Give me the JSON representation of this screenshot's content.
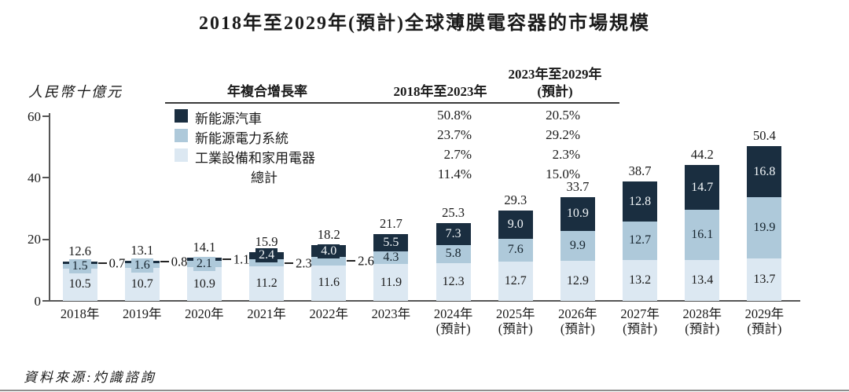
{
  "source_note": "資料來源:灼識諮詢",
  "cagr_table": {
    "col_header_metric": "年複合增長率",
    "col_header_period1": "2018年至2023年",
    "col_header_period2_line1": "2023年至2029年",
    "col_header_period2_line2": "(預計)",
    "rows": [
      {
        "label": "新能源汽車",
        "swatch": "#1a2e40",
        "period1": "50.8%",
        "period2": "20.5%"
      },
      {
        "label": "新能源電力系統",
        "swatch": "#aec9da",
        "period1": "23.7%",
        "period2": "29.2%"
      },
      {
        "label": "工業設備和家用電器",
        "swatch": "#dce8f2",
        "period1": "2.7%",
        "period2": "2.3%"
      },
      {
        "label": "總計",
        "swatch": null,
        "period1": "11.4%",
        "period2": "15.0%"
      }
    ]
  },
  "chart_data": {
    "type": "bar",
    "stacked": true,
    "title": "2018年至2029年(預計)全球薄膜電容器的市場規模",
    "ylabel": "人民幣十億元",
    "xlabel": "",
    "ylim": [
      0,
      60
    ],
    "yticks": [
      0,
      20,
      40,
      60
    ],
    "grid": false,
    "legend_position": "top-left-table",
    "categories": [
      "2018年",
      "2019年",
      "2020年",
      "2021年",
      "2022年",
      "2023年",
      "2024年",
      "2025年",
      "2026年",
      "2027年",
      "2028年",
      "2029年"
    ],
    "category_sublabels": [
      "",
      "",
      "",
      "",
      "",
      "",
      "(預計)",
      "(預計)",
      "(預計)",
      "(預計)",
      "(預計)",
      "(預計)"
    ],
    "totals": [
      12.6,
      13.1,
      14.1,
      15.9,
      18.2,
      21.7,
      25.3,
      29.3,
      33.7,
      38.7,
      44.2,
      50.4
    ],
    "series": [
      {
        "name": "工業設備和家用電器",
        "color": "#dce8f2",
        "label_color": "#1a1a1a",
        "values": [
          10.5,
          10.7,
          10.9,
          11.2,
          11.6,
          11.9,
          12.3,
          12.7,
          12.9,
          13.2,
          13.4,
          13.7
        ],
        "label_pos": [
          "in",
          "in",
          "in",
          "in",
          "in",
          "in",
          "in",
          "in",
          "in",
          "in",
          "in",
          "in"
        ]
      },
      {
        "name": "新能源電力系統",
        "color": "#aec9da",
        "label_color": "#16242e",
        "values": [
          1.5,
          1.6,
          2.1,
          2.3,
          2.6,
          4.3,
          5.8,
          7.6,
          9.9,
          12.7,
          16.1,
          19.9
        ],
        "label_pos": [
          "box",
          "box",
          "box",
          "out",
          "out",
          "in",
          "in",
          "in",
          "in",
          "in",
          "in",
          "in"
        ]
      },
      {
        "name": "新能源汽車",
        "color": "#1a2e40",
        "label_color": "#f2f6f8",
        "values": [
          0.7,
          0.8,
          1.1,
          2.4,
          4.0,
          5.5,
          7.3,
          9.0,
          10.9,
          12.8,
          14.7,
          16.8
        ],
        "label_pos": [
          "out",
          "out",
          "out",
          "box",
          "box",
          "in",
          "in",
          "in",
          "in",
          "in",
          "in",
          "in"
        ]
      }
    ]
  }
}
